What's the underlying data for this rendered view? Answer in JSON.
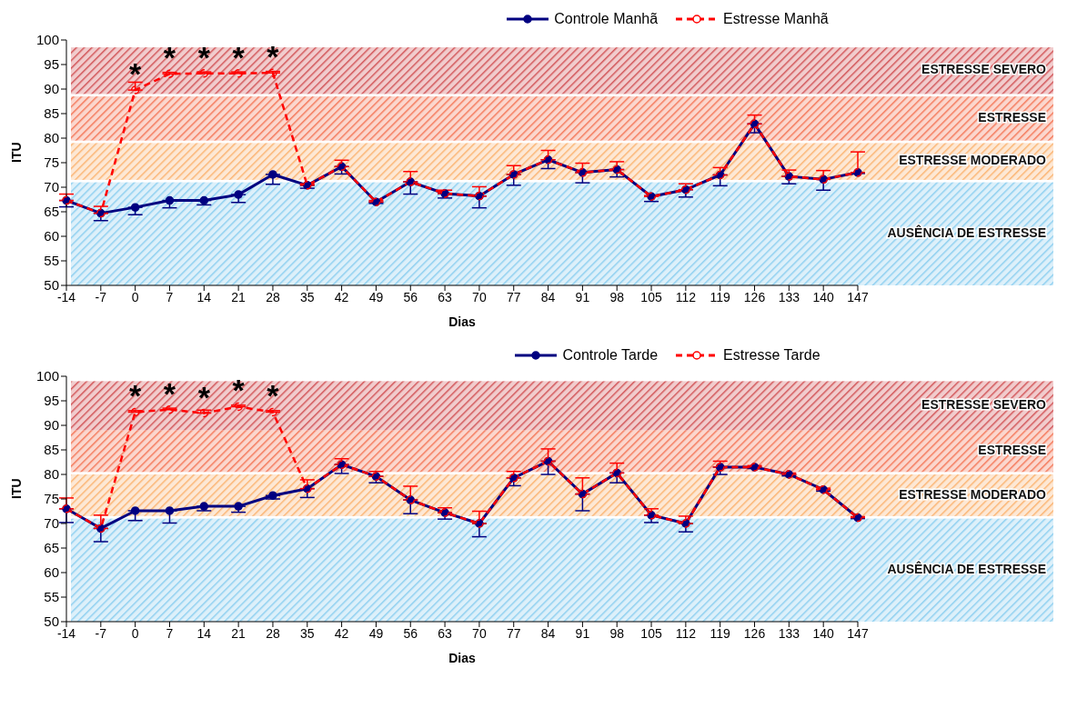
{
  "chart_data": [
    {
      "type": "line",
      "xlabel": "Dias",
      "ylabel": "ITU",
      "legend": "top",
      "marker": "circle",
      "grid": false,
      "categories": [
        "-14",
        "-7",
        "0",
        "7",
        "14",
        "21",
        "28",
        "35",
        "42",
        "49",
        "56",
        "63",
        "70",
        "77",
        "84",
        "91",
        "98",
        "105",
        "112",
        "119",
        "126",
        "133",
        "140",
        "147"
      ],
      "ylim": [
        50,
        100
      ],
      "yticks": [
        50,
        55,
        60,
        65,
        70,
        75,
        80,
        85,
        90,
        95,
        100
      ],
      "series": [
        {
          "name": "Controle Manhã",
          "color": "#000080",
          "line_style": "solid",
          "values": [
            67.3,
            64.7,
            65.9,
            67.3,
            67.3,
            68.5,
            72.6,
            70.4,
            74.2,
            67.0,
            71.1,
            68.7,
            68.2,
            72.6,
            75.6,
            73.0,
            73.6,
            68.1,
            69.5,
            72.5,
            82.9,
            72.2,
            71.6,
            73.0
          ],
          "errors": [
            [
              66.0,
              67.3
            ],
            [
              63.2,
              64.7
            ],
            [
              64.4,
              65.9
            ],
            [
              65.8,
              67.3
            ],
            [
              66.4,
              67.3
            ],
            [
              66.9,
              68.5
            ],
            [
              70.6,
              72.6
            ],
            [
              69.8,
              70.4
            ],
            [
              72.7,
              74.2
            ],
            [
              66.7,
              67.0
            ],
            [
              68.6,
              71.1
            ],
            [
              67.8,
              68.7
            ],
            [
              65.8,
              68.2
            ],
            [
              70.4,
              72.6
            ],
            [
              73.8,
              75.6
            ],
            [
              70.9,
              73.0
            ],
            [
              72.1,
              73.6
            ],
            [
              67.1,
              68.1
            ],
            [
              68.0,
              69.5
            ],
            [
              70.3,
              72.5
            ],
            [
              81.1,
              82.9
            ],
            [
              70.7,
              72.2
            ],
            [
              69.4,
              71.6
            ],
            [
              72.8,
              73.0
            ]
          ]
        },
        {
          "name": "Estresse Manhã",
          "color": "#ff0000",
          "line_style": "dashed",
          "values": [
            67.3,
            64.7,
            89.8,
            93.1,
            93.2,
            93.2,
            93.3,
            70.4,
            74.2,
            67.0,
            71.1,
            68.7,
            68.2,
            72.6,
            75.6,
            73.0,
            73.6,
            68.1,
            69.5,
            72.5,
            82.9,
            72.2,
            71.6,
            73.0
          ],
          "errors": [
            [
              67.3,
              68.6
            ],
            [
              64.7,
              66.1
            ],
            [
              89.8,
              91.4
            ],
            [
              93.1,
              93.4
            ],
            [
              93.2,
              93.5
            ],
            [
              93.2,
              93.5
            ],
            [
              93.3,
              93.6
            ],
            [
              70.4,
              70.7
            ],
            [
              74.2,
              75.5
            ],
            [
              67.0,
              67.3
            ],
            [
              71.1,
              73.2
            ],
            [
              68.7,
              69.4
            ],
            [
              68.2,
              70.1
            ],
            [
              72.6,
              74.4
            ],
            [
              75.6,
              77.5
            ],
            [
              73.0,
              74.9
            ],
            [
              73.6,
              75.2
            ],
            [
              68.1,
              68.3
            ],
            [
              69.5,
              70.7
            ],
            [
              72.5,
              74.0
            ],
            [
              82.9,
              84.7
            ],
            [
              72.2,
              73.5
            ],
            [
              71.6,
              73.4
            ],
            [
              73.0,
              77.2
            ]
          ]
        }
      ],
      "bands": [
        {
          "axis": "y",
          "from": 50,
          "to": 71,
          "label": "AUSÊNCIA DE ESTRESSE",
          "color": "#8fd0f0"
        },
        {
          "axis": "y",
          "from": 71.5,
          "to": 79,
          "label": "ESTRESSE MODERADO",
          "color": "#fbb574"
        },
        {
          "axis": "y",
          "from": 79.5,
          "to": 88.5,
          "label": "ESTRESSE",
          "color": "#f47a5c"
        },
        {
          "axis": "y",
          "from": 89,
          "to": 98.5,
          "label": "ESTRESSE SEVERO",
          "color": "#d2575a"
        }
      ],
      "annotations": [
        {
          "text": "*",
          "x": "0",
          "y": 89.8
        },
        {
          "text": "*",
          "x": "7",
          "y": 93.1
        },
        {
          "text": "*",
          "x": "14",
          "y": 93.2
        },
        {
          "text": "*",
          "x": "21",
          "y": 93.2
        },
        {
          "text": "*",
          "x": "28",
          "y": 93.3
        }
      ]
    },
    {
      "type": "line",
      "xlabel": "Dias",
      "ylabel": "ITU",
      "legend": "top",
      "marker": "circle",
      "grid": false,
      "categories": [
        "-14",
        "-7",
        "0",
        "7",
        "14",
        "21",
        "28",
        "35",
        "42",
        "49",
        "56",
        "63",
        "70",
        "77",
        "84",
        "91",
        "98",
        "105",
        "112",
        "119",
        "126",
        "133",
        "140",
        "147"
      ],
      "ylim": [
        50,
        100
      ],
      "yticks": [
        50,
        55,
        60,
        65,
        70,
        75,
        80,
        85,
        90,
        95,
        100
      ],
      "series": [
        {
          "name": "Controle Tarde",
          "color": "#000080",
          "line_style": "solid",
          "values": [
            73.0,
            69.0,
            72.6,
            72.6,
            73.5,
            73.5,
            75.7,
            77.1,
            82.0,
            79.6,
            74.8,
            72.2,
            70.0,
            79.3,
            82.7,
            76.0,
            80.3,
            71.7,
            70.0,
            81.5,
            81.5,
            80.0,
            76.9,
            71.2
          ],
          "errors": [
            [
              70.2,
              73.0
            ],
            [
              66.3,
              69.0
            ],
            [
              70.6,
              72.6
            ],
            [
              70.1,
              72.6
            ],
            [
              72.6,
              73.5
            ],
            [
              72.3,
              73.5
            ],
            [
              75.0,
              75.7
            ],
            [
              75.3,
              77.1
            ],
            [
              80.2,
              82.0
            ],
            [
              78.3,
              79.6
            ],
            [
              72.0,
              74.8
            ],
            [
              70.9,
              72.2
            ],
            [
              67.3,
              70.0
            ],
            [
              77.7,
              79.3
            ],
            [
              80.0,
              82.7
            ],
            [
              72.6,
              76.0
            ],
            [
              78.3,
              80.3
            ],
            [
              70.2,
              71.7
            ],
            [
              68.3,
              70.0
            ],
            [
              80.0,
              81.5
            ],
            [
              81.2,
              81.5
            ],
            [
              79.7,
              80.0
            ],
            [
              76.6,
              76.9
            ],
            [
              71.0,
              71.2
            ]
          ]
        },
        {
          "name": "Estresse Tarde",
          "color": "#ff0000",
          "line_style": "dashed",
          "values": [
            73.0,
            69.0,
            92.7,
            93.2,
            92.5,
            93.8,
            92.7,
            77.1,
            82.0,
            79.6,
            74.8,
            72.2,
            70.0,
            79.3,
            82.7,
            76.0,
            80.3,
            71.7,
            70.0,
            81.5,
            81.5,
            80.0,
            76.9,
            71.2
          ],
          "errors": [
            [
              73.0,
              75.2
            ],
            [
              69.0,
              71.7
            ],
            [
              92.7,
              93.0
            ],
            [
              93.2,
              93.5
            ],
            [
              92.5,
              93.1
            ],
            [
              93.8,
              94.1
            ],
            [
              92.7,
              93.0
            ],
            [
              77.1,
              78.9
            ],
            [
              82.0,
              83.2
            ],
            [
              79.6,
              80.6
            ],
            [
              74.8,
              77.6
            ],
            [
              72.2,
              73.2
            ],
            [
              70.0,
              72.5
            ],
            [
              79.3,
              80.6
            ],
            [
              82.7,
              85.2
            ],
            [
              76.0,
              79.3
            ],
            [
              80.3,
              82.3
            ],
            [
              71.7,
              73.0
            ],
            [
              70.0,
              71.5
            ],
            [
              81.5,
              82.7
            ],
            [
              81.5,
              81.8
            ],
            [
              80.0,
              80.3
            ],
            [
              76.9,
              77.2
            ],
            [
              71.2,
              71.4
            ]
          ]
        }
      ],
      "bands": [
        {
          "axis": "y",
          "from": 50,
          "to": 71,
          "label": "AUSÊNCIA DE ESTRESSE",
          "color": "#8fd0f0"
        },
        {
          "axis": "y",
          "from": 71.5,
          "to": 80,
          "label": "ESTRESSE MODERADO",
          "color": "#fbb574"
        },
        {
          "axis": "y",
          "from": 80.5,
          "to": 89,
          "label": "ESTRESSE",
          "color": "#f47a5c"
        },
        {
          "axis": "y",
          "from": 89,
          "to": 99,
          "label": "ESTRESSE SEVERO",
          "color": "#d2575a"
        }
      ],
      "annotations": [
        {
          "text": "*",
          "x": "0",
          "y": 92.7
        },
        {
          "text": "*",
          "x": "7",
          "y": 93.2
        },
        {
          "text": "*",
          "x": "14",
          "y": 92.5
        },
        {
          "text": "*",
          "x": "21",
          "y": 93.8
        },
        {
          "text": "*",
          "x": "28",
          "y": 92.7
        }
      ]
    }
  ]
}
